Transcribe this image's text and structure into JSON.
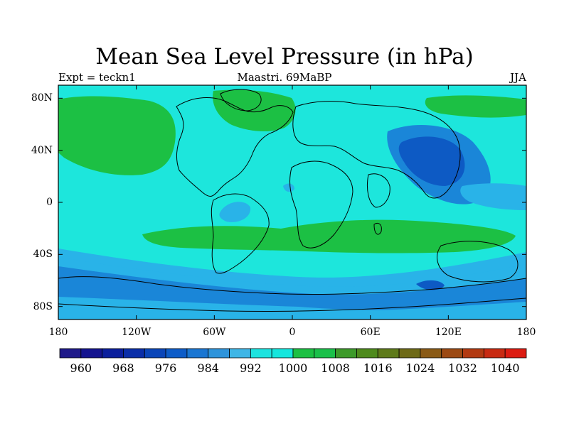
{
  "title": "Mean Sea Level Pressure (in hPa)",
  "subtitle_left": "Expt = teckn1",
  "subtitle_center": "Maastri.  69MaBP",
  "subtitle_right": "JJA",
  "y_axis": {
    "labels": [
      "80N",
      "40N",
      "0",
      "40S",
      "80S"
    ],
    "values": [
      80,
      40,
      0,
      -40,
      -80
    ],
    "range": [
      -90,
      90
    ]
  },
  "x_axis": {
    "labels": [
      "180",
      "120W",
      "60W",
      "0",
      "60E",
      "120E",
      "180"
    ],
    "values": [
      -180,
      -120,
      -60,
      0,
      60,
      120,
      180
    ],
    "range": [
      -180,
      180
    ]
  },
  "colorbar": {
    "labels": [
      "960",
      "968",
      "976",
      "984",
      "992",
      "1000",
      "1008",
      "1016",
      "1024",
      "1032",
      "1040"
    ],
    "level_values": [
      960,
      968,
      976,
      984,
      992,
      1000,
      1008,
      1016,
      1024,
      1032,
      1040
    ],
    "colors": [
      "#1f1a8a",
      "#14148f",
      "#0b1f9c",
      "#0a2ea8",
      "#0a45b8",
      "#0d5cc8",
      "#1a76d2",
      "#2e94db",
      "#3fb6e6",
      "#1de3df",
      "#16e6dd",
      "#1cc043",
      "#1bc04a",
      "#3d9a2a",
      "#4e8a1c",
      "#5e7a1a",
      "#6e6a17",
      "#8a5a16",
      "#9c4a14",
      "#b23a12",
      "#c82a12",
      "#dc1c12"
    ]
  },
  "map_colors": {
    "ocean_base": "#1de6dc",
    "high_green": "#1cc044",
    "low_light": "#29b3e8",
    "low_mid": "#1a86d8",
    "low_deep": "#0d5ac4",
    "low_deeper": "#0a3aaf"
  }
}
